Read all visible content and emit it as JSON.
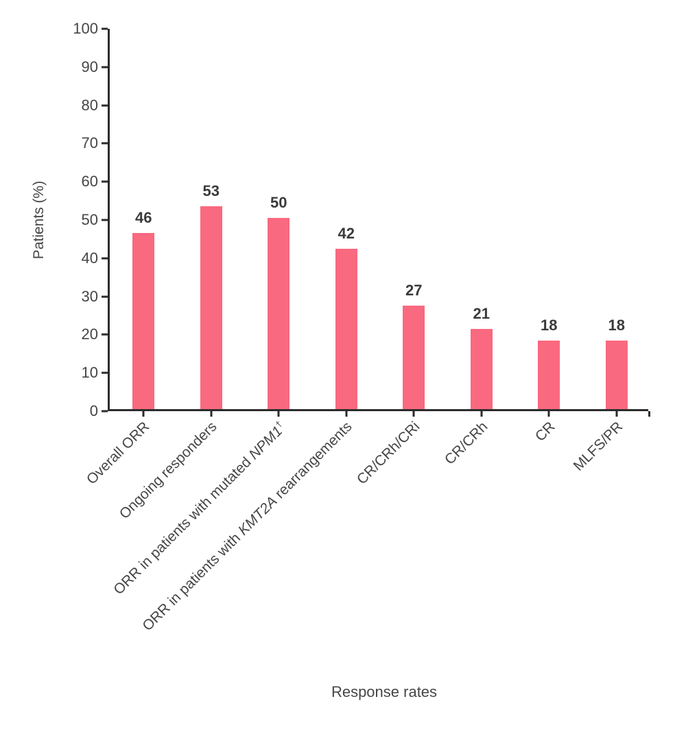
{
  "chart_data": {
    "type": "bar",
    "title": "",
    "xlabel": "Response rates",
    "ylabel": "Patients (%)",
    "ylim": [
      0,
      100
    ],
    "yticks": [
      0,
      10,
      20,
      30,
      40,
      50,
      60,
      70,
      80,
      90,
      100
    ],
    "grid": false,
    "legend": null,
    "categories": [
      "Overall ORR",
      "Ongoing responders",
      "ORR in patients with mutated NPM1†",
      "ORR in patients with KMT2A rearrangements",
      "CR/CRh/CRi",
      "CR/CRh",
      "CR",
      "MLFS/PR"
    ],
    "category_segments": [
      [
        {
          "t": "Overall ORR",
          "style": "normal"
        }
      ],
      [
        {
          "t": "Ongoing responders",
          "style": "normal"
        }
      ],
      [
        {
          "t": "ORR in patients with mutated ",
          "style": "normal"
        },
        {
          "t": "NPM1",
          "style": "italic"
        },
        {
          "t": "†",
          "style": "sup"
        }
      ],
      [
        {
          "t": "ORR in patients with ",
          "style": "normal"
        },
        {
          "t": "KMT2A",
          "style": "italic"
        },
        {
          "t": " rearrangements",
          "style": "normal"
        }
      ],
      [
        {
          "t": "CR/CRh/CRi",
          "style": "normal"
        }
      ],
      [
        {
          "t": "CR/CRh",
          "style": "normal"
        }
      ],
      [
        {
          "t": "CR",
          "style": "normal"
        }
      ],
      [
        {
          "t": "MLFS/PR",
          "style": "normal"
        }
      ]
    ],
    "values": [
      46,
      53,
      50,
      42,
      27,
      21,
      18,
      18
    ],
    "bar_value_labels": [
      "46",
      "53",
      "50",
      "42",
      "27",
      "21",
      "18",
      "18"
    ],
    "colors": {
      "bar": "#F9697F",
      "axis": "#2B2B2B",
      "tick_text": "#464646",
      "value_text": "#3A3A3A"
    }
  }
}
